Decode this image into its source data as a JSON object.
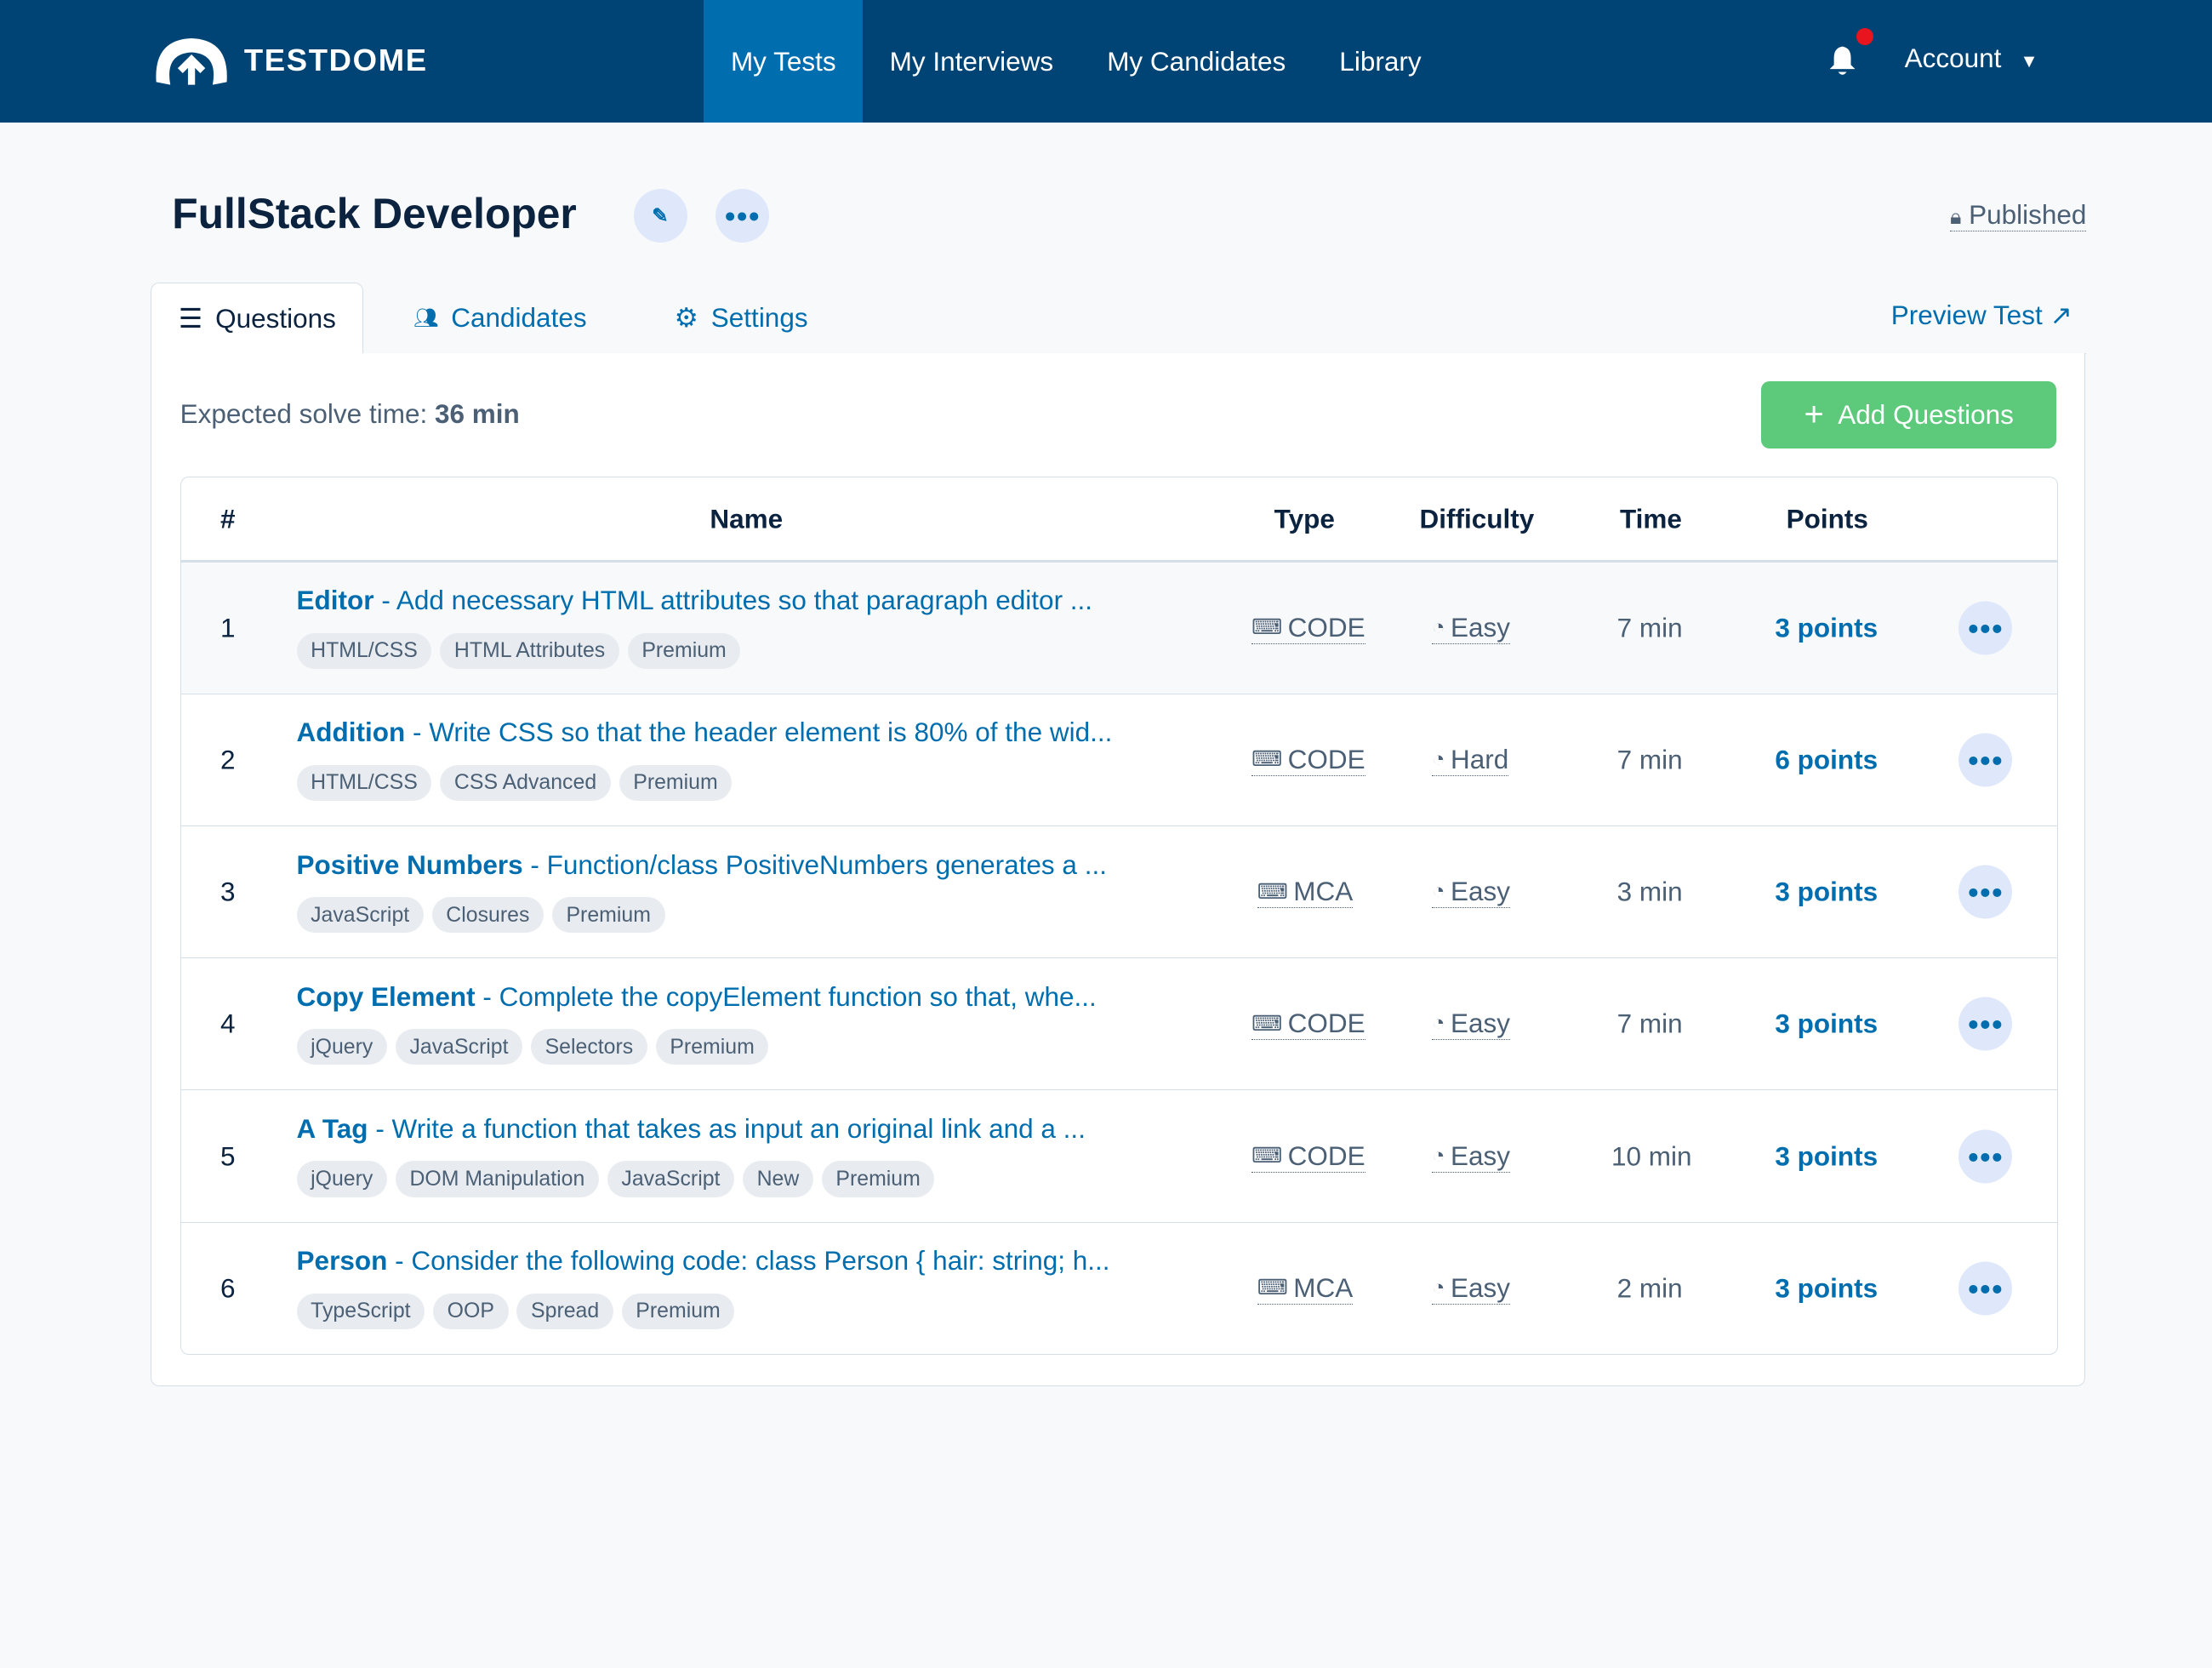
{
  "nav": {
    "brand": "TESTDOME",
    "items": [
      "My Tests",
      "My Interviews",
      "My Candidates",
      "Library"
    ],
    "active": "My Tests",
    "account": "Account"
  },
  "header": {
    "title": "FullStack Developer",
    "status": "Published"
  },
  "tabs": [
    {
      "label": "Questions",
      "icon": "list-icon"
    },
    {
      "label": "Candidates",
      "icon": "users-icon"
    },
    {
      "label": "Settings",
      "icon": "gear-icon"
    }
  ],
  "preview": "Preview Test",
  "expected": {
    "label": "Expected solve time:",
    "value": "36 min"
  },
  "add_button": "Add Questions",
  "columns": [
    "#",
    "Name",
    "Type",
    "Difficulty",
    "Time",
    "Points"
  ],
  "rows": [
    {
      "n": "1",
      "title": "Editor",
      "desc": "- Add necessary HTML attributes so that paragraph editor ...",
      "tags": [
        "HTML/CSS",
        "HTML Attributes",
        "Premium"
      ],
      "type": "CODE",
      "difficulty": "Easy",
      "time": "7 min",
      "points": "3 points"
    },
    {
      "n": "2",
      "title": "Addition",
      "desc": "- Write CSS so that the header element is 80% of the wid...",
      "tags": [
        "HTML/CSS",
        "CSS Advanced",
        "Premium"
      ],
      "type": "CODE",
      "difficulty": "Hard",
      "time": "7 min",
      "points": "6 points"
    },
    {
      "n": "3",
      "title": "Positive Numbers",
      "desc": "- Function/class PositiveNumbers generates a ...",
      "tags": [
        "JavaScript",
        "Closures",
        "Premium"
      ],
      "type": "MCA",
      "difficulty": "Easy",
      "time": "3 min",
      "points": "3 points"
    },
    {
      "n": "4",
      "title": "Copy Element",
      "desc": "- Complete the copyElement function so that, whe...",
      "tags": [
        "jQuery",
        "JavaScript",
        "Selectors",
        "Premium"
      ],
      "type": "CODE",
      "difficulty": "Easy",
      "time": "7 min",
      "points": "3 points"
    },
    {
      "n": "5",
      "title": "A Tag",
      "desc": "- Write a function that takes as input an original link and a ...",
      "tags": [
        "jQuery",
        "DOM Manipulation",
        "JavaScript",
        "New",
        "Premium"
      ],
      "type": "CODE",
      "difficulty": "Easy",
      "time": "10 min",
      "points": "3 points"
    },
    {
      "n": "6",
      "title": "Person",
      "desc": "- Consider the following code: class Person { hair: string; h...",
      "tags": [
        "TypeScript",
        "OOP",
        "Spread",
        "Premium"
      ],
      "type": "MCA",
      "difficulty": "Easy",
      "time": "2 min",
      "points": "3 points"
    }
  ],
  "colors": {
    "nav": "#004475",
    "active": "#006eae",
    "accent": "#006eae",
    "add": "#5dc97b",
    "notification": "#e8141e"
  }
}
